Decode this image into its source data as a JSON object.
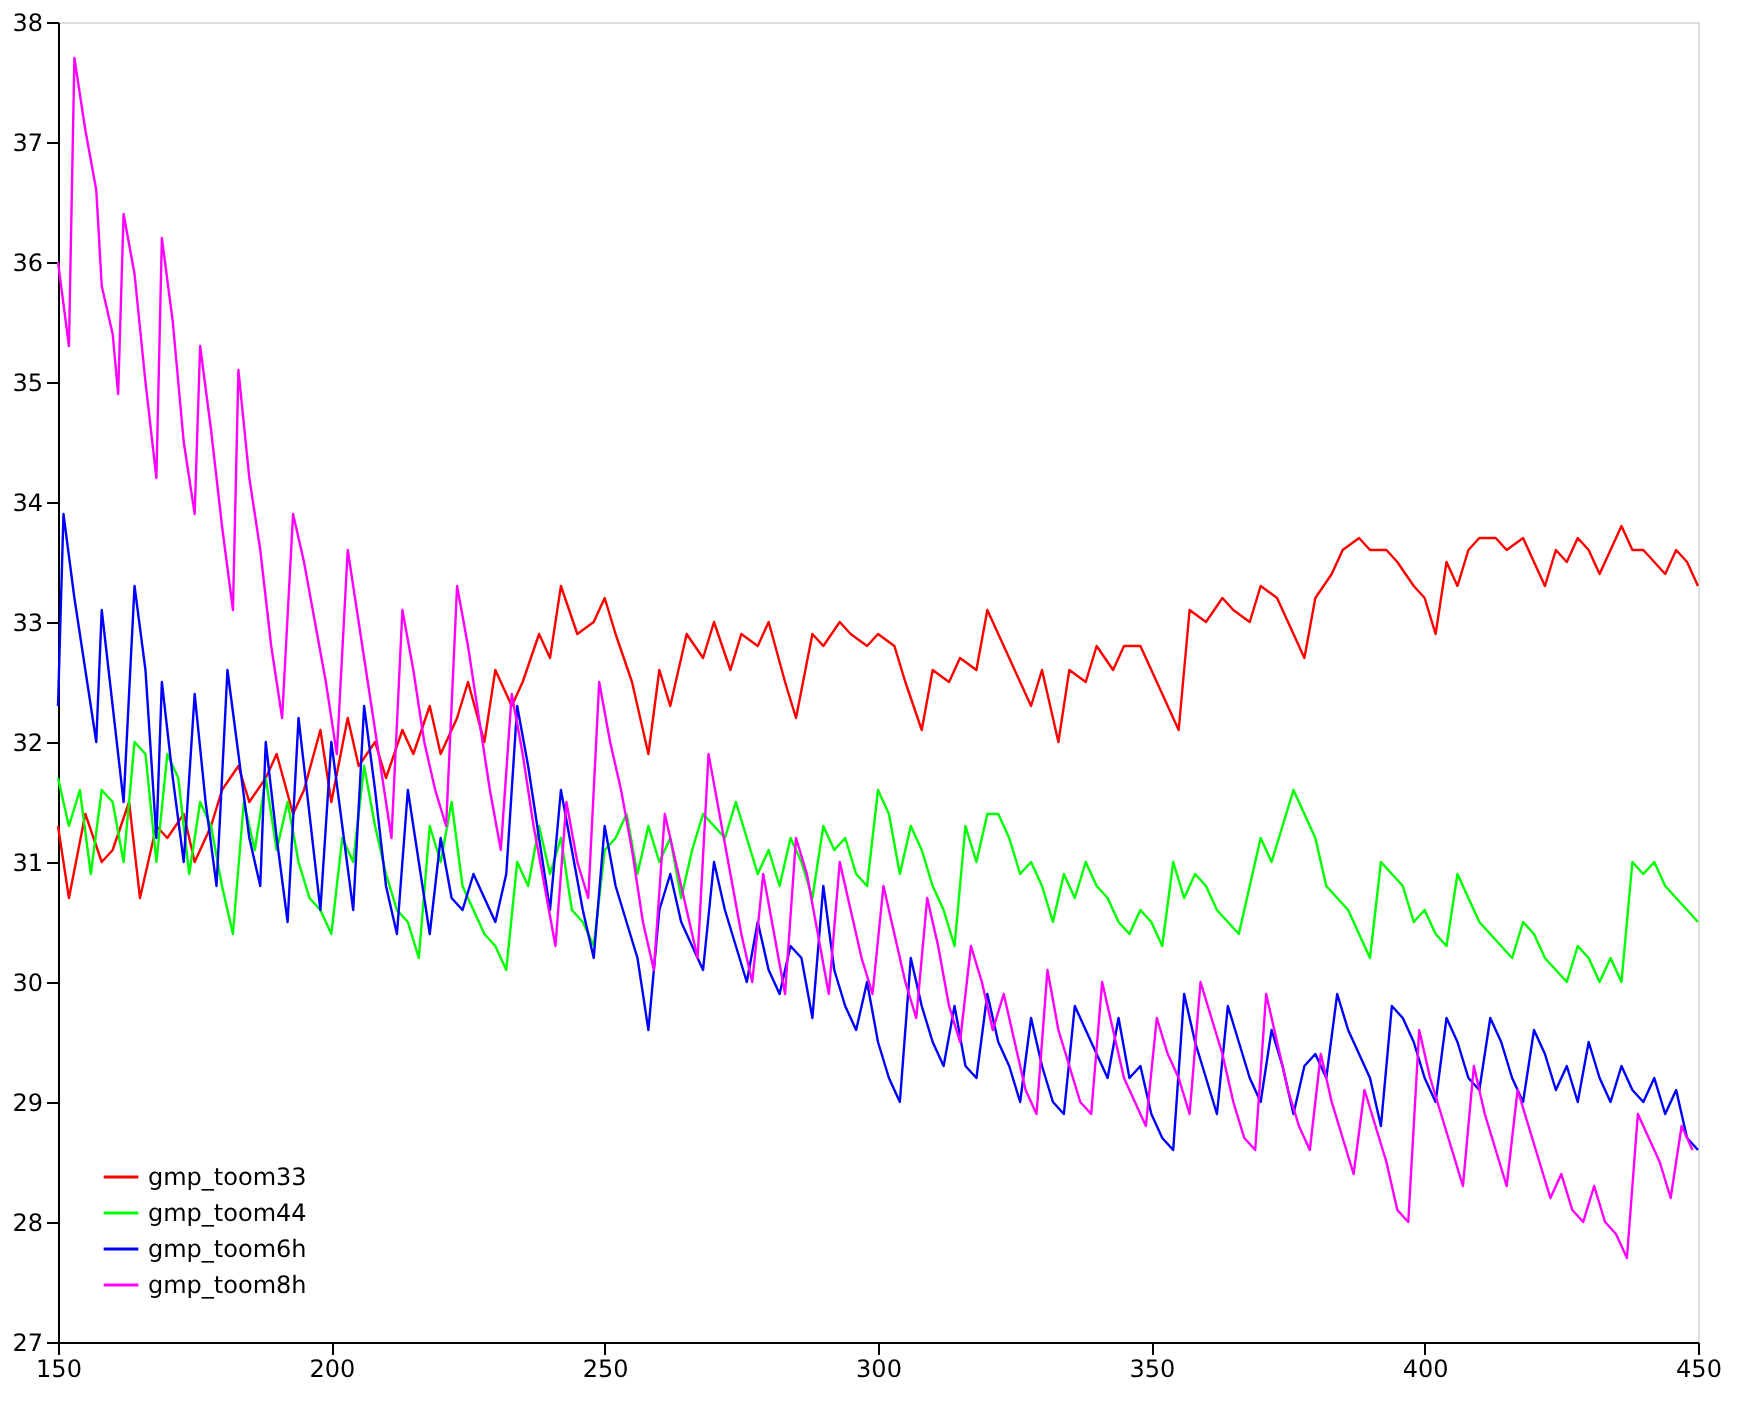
{
  "chart_data": {
    "type": "line",
    "xlim": [
      150,
      450
    ],
    "ylim": [
      27,
      38
    ],
    "xticks": [
      150,
      200,
      250,
      300,
      350,
      400,
      450
    ],
    "yticks": [
      27,
      28,
      29,
      30,
      31,
      32,
      33,
      34,
      35,
      36,
      37,
      38
    ],
    "grid": false,
    "legend": "bottom left",
    "marker": "none",
    "line_style": "solid",
    "series": [
      {
        "name": "gmp_toom33",
        "color": "#ff0000",
        "x": [
          150,
          152,
          155,
          158,
          160,
          163,
          165,
          168,
          170,
          173,
          175,
          178,
          180,
          183,
          185,
          188,
          190,
          193,
          195,
          198,
          200,
          203,
          205,
          208,
          210,
          213,
          215,
          218,
          220,
          223,
          225,
          228,
          230,
          233,
          235,
          238,
          240,
          242,
          245,
          248,
          250,
          252,
          255,
          258,
          260,
          262,
          265,
          268,
          270,
          273,
          275,
          278,
          280,
          283,
          285,
          288,
          290,
          293,
          295,
          298,
          300,
          303,
          305,
          308,
          310,
          313,
          315,
          318,
          320,
          323,
          325,
          328,
          330,
          333,
          335,
          338,
          340,
          343,
          345,
          348,
          350,
          353,
          355,
          357,
          360,
          363,
          365,
          368,
          370,
          373,
          375,
          378,
          380,
          383,
          385,
          388,
          390,
          393,
          395,
          398,
          400,
          402,
          404,
          406,
          408,
          410,
          413,
          415,
          418,
          420,
          422,
          424,
          426,
          428,
          430,
          432,
          434,
          436,
          438,
          440,
          442,
          444,
          446,
          448,
          450
        ],
        "values": [
          31.3,
          30.7,
          31.4,
          31.0,
          31.1,
          31.5,
          30.7,
          31.3,
          31.2,
          31.4,
          31.0,
          31.3,
          31.6,
          31.8,
          31.5,
          31.7,
          31.9,
          31.4,
          31.6,
          32.1,
          31.5,
          32.2,
          31.8,
          32.0,
          31.7,
          32.1,
          31.9,
          32.3,
          31.9,
          32.2,
          32.5,
          32.0,
          32.6,
          32.3,
          32.5,
          32.9,
          32.7,
          33.3,
          32.9,
          33.0,
          33.2,
          32.9,
          32.5,
          31.9,
          32.6,
          32.3,
          32.9,
          32.7,
          33.0,
          32.6,
          32.9,
          32.8,
          33.0,
          32.5,
          32.2,
          32.9,
          32.8,
          33.0,
          32.9,
          32.8,
          32.9,
          32.8,
          32.5,
          32.1,
          32.6,
          32.5,
          32.7,
          32.6,
          33.1,
          32.8,
          32.6,
          32.3,
          32.6,
          32.0,
          32.6,
          32.5,
          32.8,
          32.6,
          32.8,
          32.8,
          32.6,
          32.3,
          32.1,
          33.1,
          33.0,
          33.2,
          33.1,
          33.0,
          33.3,
          33.2,
          33.0,
          32.7,
          33.2,
          33.4,
          33.6,
          33.7,
          33.6,
          33.6,
          33.5,
          33.3,
          33.2,
          32.9,
          33.5,
          33.3,
          33.6,
          33.7,
          33.7,
          33.6,
          33.7,
          33.5,
          33.3,
          33.6,
          33.5,
          33.7,
          33.6,
          33.4,
          33.6,
          33.8,
          33.6,
          33.6,
          33.5,
          33.4,
          33.6,
          33.5,
          33.3
        ]
      },
      {
        "name": "gmp_toom44",
        "color": "#00ff00",
        "x": [
          150,
          152,
          154,
          156,
          158,
          160,
          162,
          164,
          166,
          168,
          170,
          172,
          174,
          176,
          178,
          180,
          182,
          184,
          186,
          188,
          190,
          192,
          194,
          196,
          198,
          200,
          202,
          204,
          206,
          208,
          210,
          212,
          214,
          216,
          218,
          220,
          222,
          224,
          226,
          228,
          230,
          232,
          234,
          236,
          238,
          240,
          242,
          244,
          246,
          248,
          250,
          252,
          254,
          256,
          258,
          260,
          262,
          264,
          266,
          268,
          270,
          272,
          274,
          276,
          278,
          280,
          282,
          284,
          286,
          288,
          290,
          292,
          294,
          296,
          298,
          300,
          302,
          304,
          306,
          308,
          310,
          312,
          314,
          316,
          318,
          320,
          322,
          324,
          326,
          328,
          330,
          332,
          334,
          336,
          338,
          340,
          342,
          344,
          346,
          348,
          350,
          352,
          354,
          356,
          358,
          360,
          362,
          364,
          366,
          368,
          370,
          372,
          374,
          376,
          378,
          380,
          382,
          384,
          386,
          388,
          390,
          392,
          394,
          396,
          398,
          400,
          402,
          404,
          406,
          408,
          410,
          412,
          414,
          416,
          418,
          420,
          422,
          424,
          426,
          428,
          430,
          432,
          434,
          436,
          438,
          440,
          442,
          444,
          446,
          448,
          450
        ],
        "values": [
          31.7,
          31.3,
          31.6,
          30.9,
          31.6,
          31.5,
          31.0,
          32.0,
          31.9,
          31.0,
          31.9,
          31.7,
          30.9,
          31.5,
          31.3,
          30.8,
          30.4,
          31.5,
          31.1,
          31.7,
          31.1,
          31.5,
          31.0,
          30.7,
          30.6,
          30.4,
          31.2,
          31.0,
          31.8,
          31.3,
          30.9,
          30.6,
          30.5,
          30.2,
          31.3,
          31.0,
          31.5,
          30.8,
          30.6,
          30.4,
          30.3,
          30.1,
          31.0,
          30.8,
          31.3,
          30.9,
          31.2,
          30.6,
          30.5,
          30.3,
          31.1,
          31.2,
          31.4,
          30.9,
          31.3,
          31.0,
          31.2,
          30.7,
          31.1,
          31.4,
          31.3,
          31.2,
          31.5,
          31.2,
          30.9,
          31.1,
          30.8,
          31.2,
          31.0,
          30.7,
          31.3,
          31.1,
          31.2,
          30.9,
          30.8,
          31.6,
          31.4,
          30.9,
          31.3,
          31.1,
          30.8,
          30.6,
          30.3,
          31.3,
          31.0,
          31.4,
          31.4,
          31.2,
          30.9,
          31.0,
          30.8,
          30.5,
          30.9,
          30.7,
          31.0,
          30.8,
          30.7,
          30.5,
          30.4,
          30.6,
          30.5,
          30.3,
          31.0,
          30.7,
          30.9,
          30.8,
          30.6,
          30.5,
          30.4,
          30.8,
          31.2,
          31.0,
          31.3,
          31.6,
          31.4,
          31.2,
          30.8,
          30.7,
          30.6,
          30.4,
          30.2,
          31.0,
          30.9,
          30.8,
          30.5,
          30.6,
          30.4,
          30.3,
          30.9,
          30.7,
          30.5,
          30.4,
          30.3,
          30.2,
          30.5,
          30.4,
          30.2,
          30.1,
          30.0,
          30.3,
          30.2,
          30.0,
          30.2,
          30.0,
          31.0,
          30.9,
          31.0,
          30.8,
          30.7,
          30.6,
          30.5
        ]
      },
      {
        "name": "gmp_toom6h",
        "color": "#0000ff",
        "x": [
          150,
          151,
          153,
          155,
          157,
          158,
          160,
          162,
          164,
          166,
          168,
          169,
          171,
          173,
          175,
          177,
          179,
          181,
          183,
          185,
          187,
          188,
          190,
          192,
          194,
          196,
          198,
          200,
          202,
          204,
          206,
          208,
          210,
          212,
          214,
          216,
          218,
          220,
          222,
          224,
          226,
          228,
          230,
          232,
          234,
          236,
          238,
          240,
          242,
          244,
          246,
          248,
          250,
          252,
          254,
          256,
          258,
          260,
          262,
          264,
          266,
          268,
          270,
          272,
          274,
          276,
          278,
          280,
          282,
          284,
          286,
          288,
          290,
          292,
          294,
          296,
          298,
          300,
          302,
          304,
          306,
          308,
          310,
          312,
          314,
          316,
          318,
          320,
          322,
          324,
          326,
          328,
          330,
          332,
          334,
          336,
          338,
          340,
          342,
          344,
          346,
          348,
          350,
          352,
          354,
          356,
          358,
          360,
          362,
          364,
          366,
          368,
          370,
          372,
          374,
          376,
          378,
          380,
          382,
          384,
          386,
          388,
          390,
          392,
          394,
          396,
          398,
          400,
          402,
          404,
          406,
          408,
          410,
          412,
          414,
          416,
          418,
          420,
          422,
          424,
          426,
          428,
          430,
          432,
          434,
          436,
          438,
          440,
          442,
          444,
          446,
          448,
          450
        ],
        "values": [
          32.3,
          33.9,
          33.2,
          32.6,
          32.0,
          33.1,
          32.3,
          31.5,
          33.3,
          32.6,
          31.2,
          32.5,
          31.7,
          31.0,
          32.4,
          31.5,
          30.8,
          32.6,
          31.9,
          31.2,
          30.8,
          32.0,
          31.2,
          30.5,
          32.2,
          31.4,
          30.6,
          32.0,
          31.3,
          30.6,
          32.3,
          31.6,
          30.8,
          30.4,
          31.6,
          31.0,
          30.4,
          31.2,
          30.7,
          30.6,
          30.9,
          30.7,
          30.5,
          30.9,
          32.3,
          31.8,
          31.2,
          30.6,
          31.6,
          31.1,
          30.6,
          30.2,
          31.3,
          30.8,
          30.5,
          30.2,
          29.6,
          30.6,
          30.9,
          30.5,
          30.3,
          30.1,
          31.0,
          30.6,
          30.3,
          30.0,
          30.5,
          30.1,
          29.9,
          30.3,
          30.2,
          29.7,
          30.8,
          30.1,
          29.8,
          29.6,
          30.0,
          29.5,
          29.2,
          29.0,
          30.2,
          29.8,
          29.5,
          29.3,
          29.8,
          29.3,
          29.2,
          29.9,
          29.5,
          29.3,
          29.0,
          29.7,
          29.3,
          29.0,
          28.9,
          29.8,
          29.6,
          29.4,
          29.2,
          29.7,
          29.2,
          29.3,
          28.9,
          28.7,
          28.6,
          29.9,
          29.5,
          29.2,
          28.9,
          29.8,
          29.5,
          29.2,
          29.0,
          29.6,
          29.3,
          28.9,
          29.3,
          29.4,
          29.2,
          29.9,
          29.6,
          29.4,
          29.2,
          28.8,
          29.8,
          29.7,
          29.5,
          29.2,
          29.0,
          29.7,
          29.5,
          29.2,
          29.1,
          29.7,
          29.5,
          29.2,
          29.0,
          29.6,
          29.4,
          29.1,
          29.3,
          29.0,
          29.5,
          29.2,
          29.0,
          29.3,
          29.1,
          29.0,
          29.2,
          28.9,
          29.1,
          28.7,
          28.6
        ]
      },
      {
        "name": "gmp_toom8h",
        "color": "#ff00ff",
        "x": [
          150,
          152,
          153,
          155,
          157,
          158,
          160,
          161,
          162,
          164,
          166,
          168,
          169,
          171,
          173,
          175,
          176,
          178,
          180,
          182,
          183,
          185,
          187,
          189,
          191,
          193,
          195,
          197,
          199,
          201,
          203,
          205,
          207,
          209,
          211,
          213,
          215,
          217,
          219,
          221,
          223,
          225,
          227,
          229,
          231,
          233,
          235,
          237,
          239,
          241,
          243,
          245,
          247,
          249,
          251,
          253,
          255,
          257,
          259,
          261,
          263,
          265,
          267,
          269,
          271,
          273,
          275,
          277,
          279,
          281,
          283,
          285,
          287,
          289,
          291,
          293,
          295,
          297,
          299,
          301,
          303,
          305,
          307,
          309,
          311,
          313,
          315,
          317,
          319,
          321,
          323,
          325,
          327,
          329,
          331,
          333,
          335,
          337,
          339,
          341,
          343,
          345,
          347,
          349,
          351,
          353,
          355,
          357,
          359,
          361,
          363,
          365,
          367,
          369,
          371,
          373,
          375,
          377,
          379,
          381,
          383,
          385,
          387,
          389,
          391,
          393,
          395,
          397,
          399,
          401,
          403,
          405,
          407,
          409,
          411,
          413,
          415,
          417,
          419,
          421,
          423,
          425,
          427,
          429,
          431,
          433,
          435,
          437,
          439,
          441,
          443,
          445,
          447,
          449
        ],
        "values": [
          36.0,
          35.3,
          37.7,
          37.1,
          36.6,
          35.8,
          35.4,
          34.9,
          36.4,
          35.9,
          35.0,
          34.2,
          36.2,
          35.5,
          34.5,
          33.9,
          35.3,
          34.6,
          33.8,
          33.1,
          35.1,
          34.2,
          33.6,
          32.8,
          32.2,
          33.9,
          33.5,
          33.0,
          32.5,
          31.9,
          33.6,
          33.0,
          32.4,
          31.8,
          31.2,
          33.1,
          32.6,
          32.0,
          31.6,
          31.3,
          33.3,
          32.8,
          32.2,
          31.6,
          31.1,
          32.4,
          31.9,
          31.3,
          30.8,
          30.3,
          31.5,
          31.0,
          30.7,
          32.5,
          32.0,
          31.6,
          31.1,
          30.5,
          30.1,
          31.4,
          31.0,
          30.6,
          30.2,
          31.9,
          31.4,
          30.9,
          30.4,
          30.0,
          30.9,
          30.4,
          29.9,
          31.2,
          30.9,
          30.4,
          29.9,
          31.0,
          30.6,
          30.2,
          29.9,
          30.8,
          30.4,
          30.0,
          29.7,
          30.7,
          30.3,
          29.8,
          29.5,
          30.3,
          30.0,
          29.6,
          29.9,
          29.5,
          29.1,
          28.9,
          30.1,
          29.6,
          29.3,
          29.0,
          28.9,
          30.0,
          29.6,
          29.2,
          29.0,
          28.8,
          29.7,
          29.4,
          29.2,
          28.9,
          30.0,
          29.7,
          29.4,
          29.0,
          28.7,
          28.6,
          29.9,
          29.5,
          29.1,
          28.8,
          28.6,
          29.4,
          29.0,
          28.7,
          28.4,
          29.1,
          28.8,
          28.5,
          28.1,
          28.0,
          29.6,
          29.2,
          28.9,
          28.6,
          28.3,
          29.3,
          28.9,
          28.6,
          28.3,
          29.1,
          28.8,
          28.5,
          28.2,
          28.4,
          28.1,
          28.0,
          28.3,
          28.0,
          27.9,
          27.7,
          28.9,
          28.7,
          28.5,
          28.2,
          28.8,
          28.6
        ]
      }
    ]
  }
}
